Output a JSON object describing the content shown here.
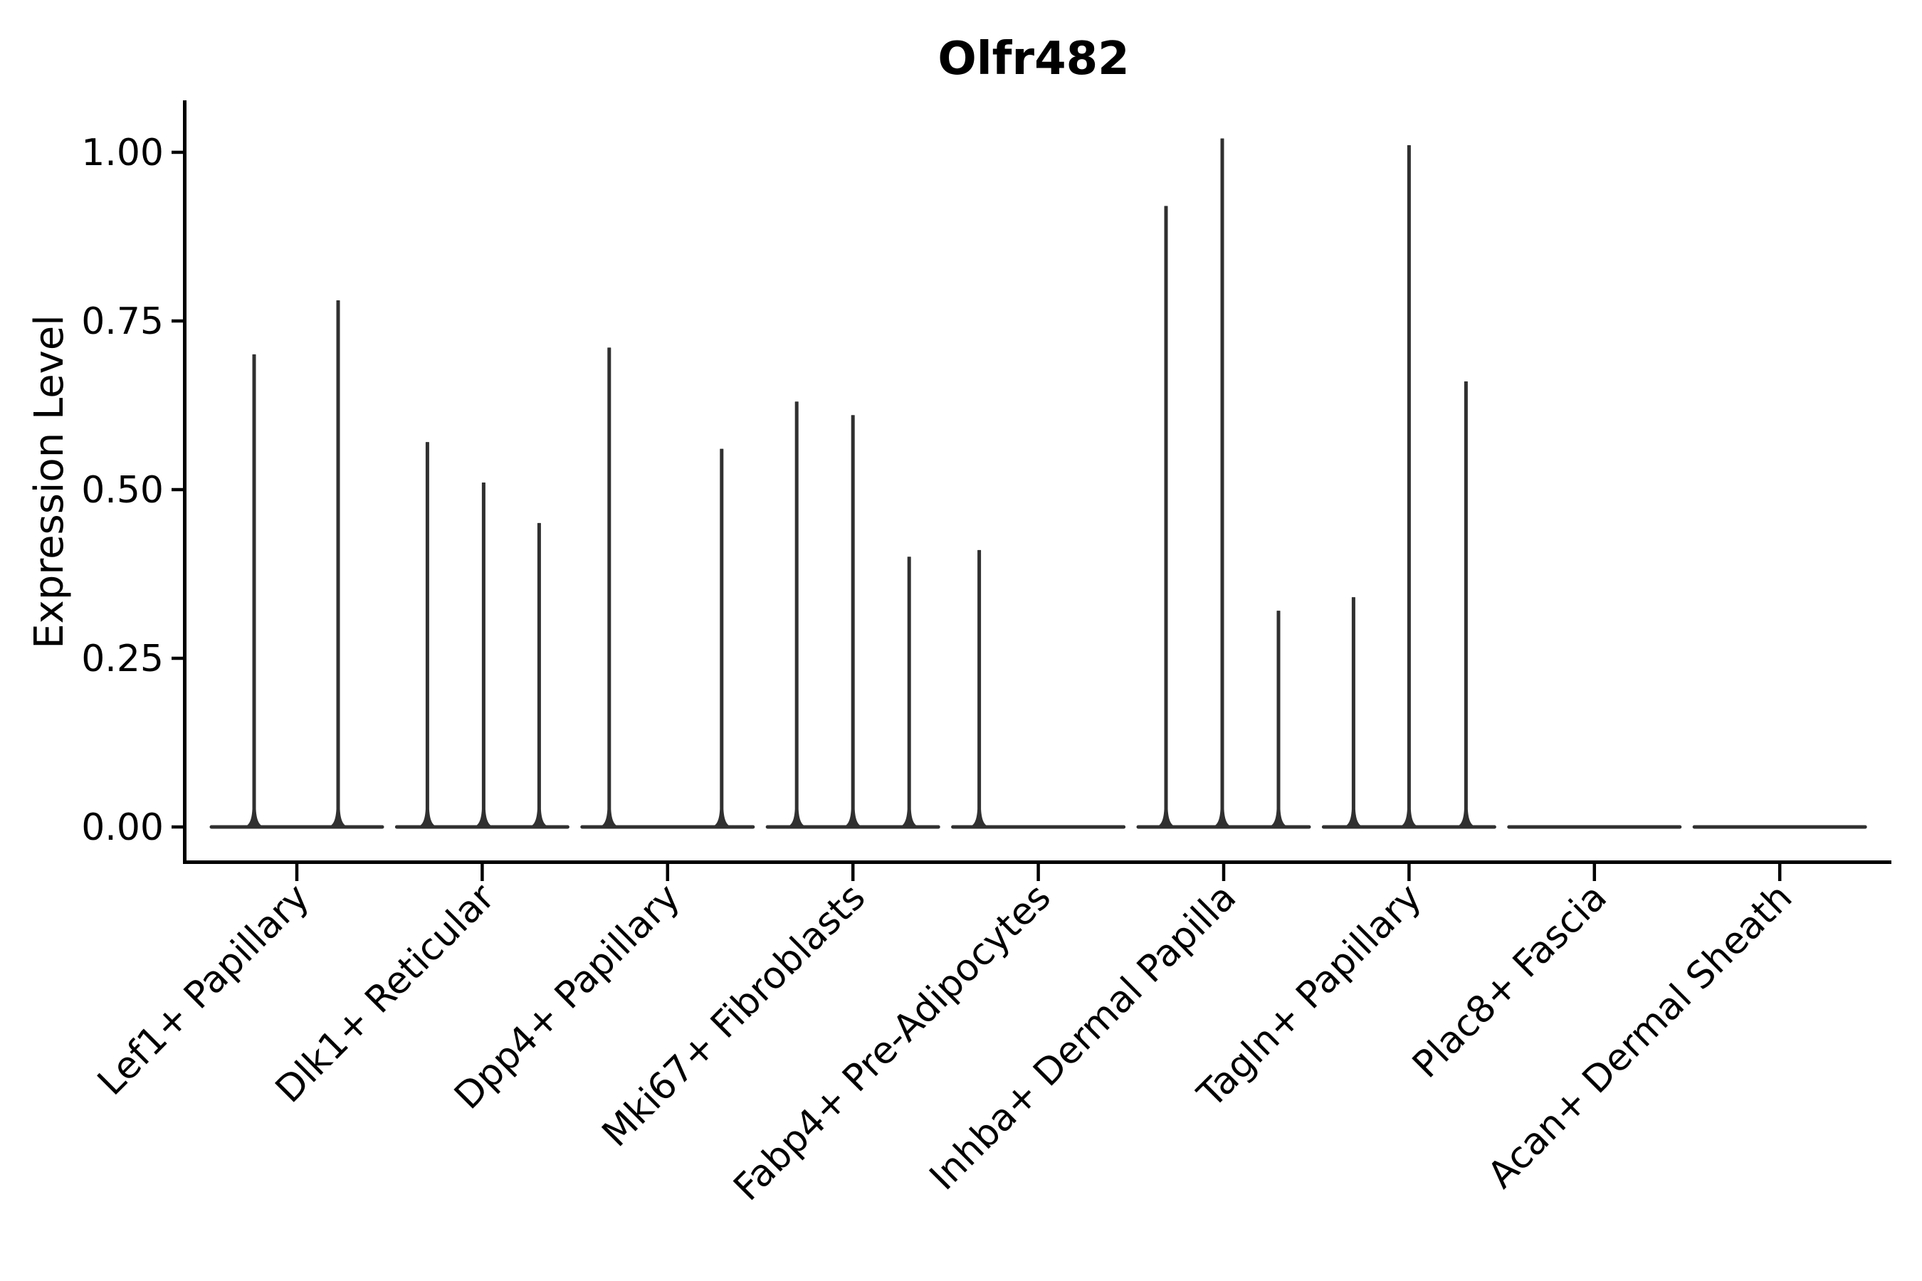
{
  "figure": {
    "background": "#ffffff"
  },
  "chart_data": {
    "type": "violin",
    "title": "Olfr482",
    "xlabel": "",
    "ylabel": "Expression Level",
    "ylim": [
      -0.05,
      1.08
    ],
    "grid": false,
    "legend_position": "none",
    "axis_color": "#000000",
    "violin_color": "#303030",
    "yticks": [
      {
        "value": 0.0,
        "label": "0.00"
      },
      {
        "value": 0.25,
        "label": "0.25"
      },
      {
        "value": 0.5,
        "label": "0.50"
      },
      {
        "value": 0.75,
        "label": "0.75"
      },
      {
        "value": 1.0,
        "label": "1.00"
      }
    ],
    "categories": [
      {
        "label": "Lef1+ Papillary",
        "spikes": [
          {
            "dx": -60,
            "value": 0.7
          },
          {
            "dx": 58,
            "value": 0.78
          }
        ]
      },
      {
        "label": "Dlk1+ Reticular",
        "spikes": [
          {
            "dx": -77,
            "value": 0.57
          },
          {
            "dx": 2,
            "value": 0.51
          },
          {
            "dx": 80,
            "value": 0.45
          }
        ]
      },
      {
        "label": "Dpp4+ Papillary",
        "spikes": [
          {
            "dx": -82,
            "value": 0.71
          },
          {
            "dx": 76,
            "value": 0.56
          }
        ]
      },
      {
        "label": "Mki67+ Fibroblasts",
        "spikes": [
          {
            "dx": -79,
            "value": 0.63
          },
          {
            "dx": 0,
            "value": 0.61
          },
          {
            "dx": 79,
            "value": 0.4
          }
        ]
      },
      {
        "label": "Fabp4+ Pre-Adipocytes",
        "spikes": [
          {
            "dx": -83,
            "value": 0.41
          }
        ]
      },
      {
        "label": "Inhba+ Dermal Papilla",
        "spikes": [
          {
            "dx": -81,
            "value": 0.92
          },
          {
            "dx": -2,
            "value": 1.02
          },
          {
            "dx": 77,
            "value": 0.32
          }
        ]
      },
      {
        "label": "Tagln+ Papillary",
        "spikes": [
          {
            "dx": -78,
            "value": 0.34
          },
          {
            "dx": 0,
            "value": 1.01
          },
          {
            "dx": 80,
            "value": 0.66
          }
        ]
      },
      {
        "label": "Plac8+ Fascia",
        "spikes": []
      },
      {
        "label": "Acan+ Dermal Sheath",
        "spikes": []
      }
    ]
  }
}
